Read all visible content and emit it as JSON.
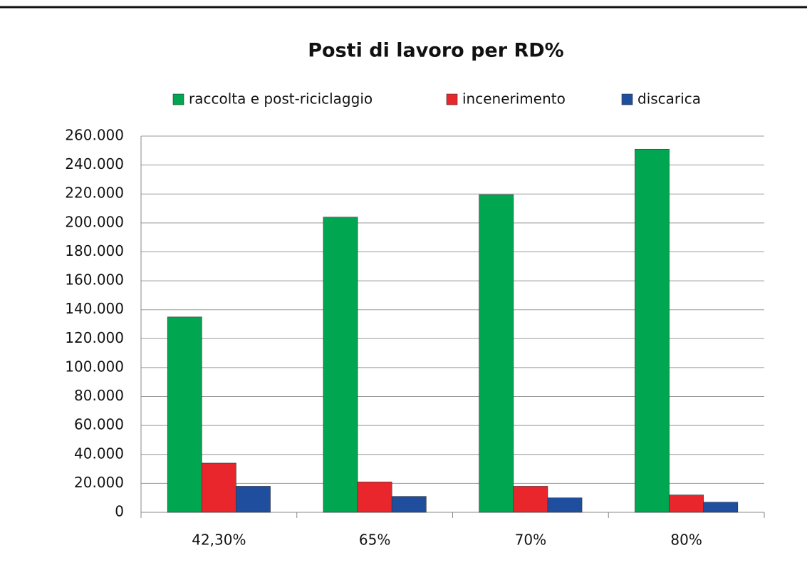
{
  "chart_data": {
    "type": "bar",
    "title": "Posti di lavoro per RD%",
    "categories": [
      "42,30%",
      "65%",
      "70%",
      "80%"
    ],
    "series": [
      {
        "name": "raccolta e post-riciclaggio",
        "color": "#00a650",
        "values": [
          135000,
          204000,
          219500,
          251000
        ]
      },
      {
        "name": "incenerimento",
        "color": "#e8262b",
        "values": [
          34000,
          21000,
          18000,
          12000
        ]
      },
      {
        "name": "discarica",
        "color": "#1f4e9e",
        "values": [
          18000,
          11000,
          10000,
          7000
        ]
      }
    ],
    "ylim": [
      0,
      260000
    ],
    "yticks": [
      0,
      {
        "value": 20000,
        "label": "20.000"
      },
      {
        "value": 40000,
        "label": "40.000"
      },
      {
        "value": 60000,
        "label": "60.000"
      },
      {
        "value": 80000,
        "label": "80.000"
      },
      {
        "value": 100000,
        "label": "100.000"
      },
      {
        "value": 120000,
        "label": "120.000"
      },
      {
        "value": 140000,
        "label": "140.000"
      },
      {
        "value": 160000,
        "label": "160.000"
      },
      {
        "value": 180000,
        "label": "180.000"
      },
      {
        "value": 200000,
        "label": "200.000"
      },
      {
        "value": 220000,
        "label": "220.000"
      },
      {
        "value": 240000,
        "label": "240.000"
      },
      {
        "value": 260000,
        "label": "260.000"
      }
    ],
    "grid": true,
    "legend": "top"
  }
}
